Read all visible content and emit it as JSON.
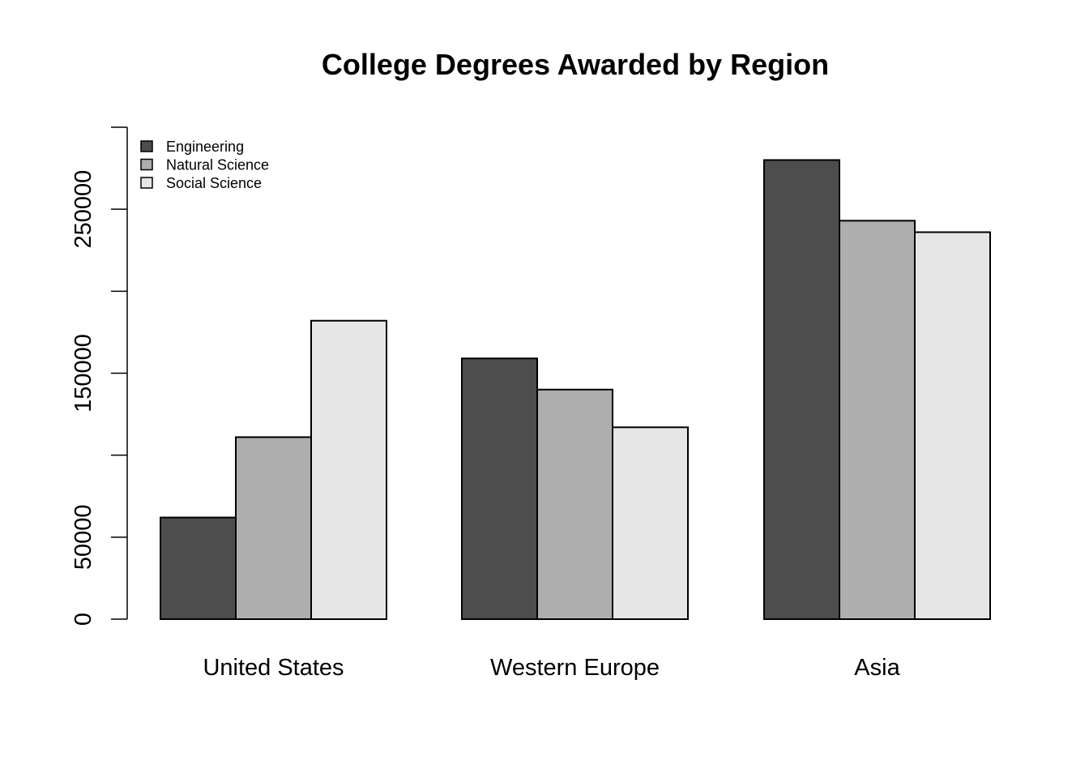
{
  "chart_data": {
    "type": "bar",
    "title": "College Degrees Awarded by Region",
    "xlabel": "",
    "ylabel": "",
    "categories": [
      "United States",
      "Western Europe",
      "Asia"
    ],
    "series": [
      {
        "name": "Engineering",
        "color": "#4d4d4d",
        "values": [
          62000,
          159000,
          280000
        ]
      },
      {
        "name": "Natural Science",
        "color": "#aeaeae",
        "values": [
          111000,
          140000,
          243000
        ]
      },
      {
        "name": "Social Science",
        "color": "#e6e6e6",
        "values": [
          182000,
          117000,
          236000
        ]
      }
    ],
    "ylim": [
      0,
      300000
    ],
    "yticks": [
      0,
      50000,
      100000,
      150000,
      200000,
      250000,
      300000
    ],
    "ytick_labels": [
      "0",
      "50000",
      "",
      "150000",
      "",
      "250000",
      ""
    ],
    "grid": false,
    "legend_position": "top-left"
  }
}
